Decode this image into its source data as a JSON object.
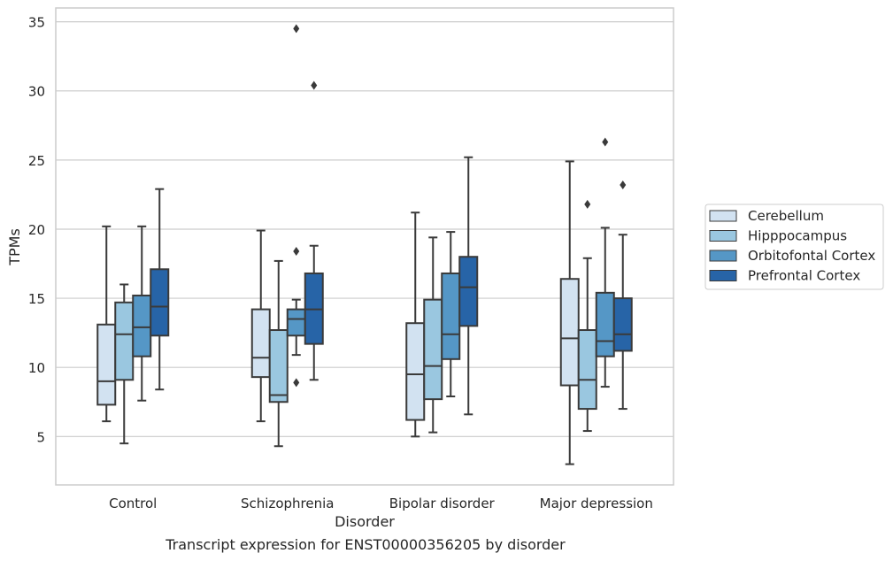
{
  "chart_data": {
    "type": "boxplot",
    "title": "",
    "caption": "Transcript expression for ENST00000356205 by disorder",
    "xlabel": "Disorder",
    "ylabel": "TPMs",
    "ylim": [
      1.5,
      36.0
    ],
    "yticks": [
      5,
      10,
      15,
      20,
      25,
      30,
      35
    ],
    "grid": "horizontal",
    "legend_position": "right",
    "categories": [
      "Control",
      "Schizophrenia",
      "Bipolar disorder",
      "Major depression"
    ],
    "series": [
      {
        "name": "Cerebellum",
        "color": "#d2e2f1",
        "boxes": [
          {
            "whislo": 6.1,
            "q1": 7.3,
            "med": 9.0,
            "q3": 13.1,
            "whishi": 20.2,
            "fliers": []
          },
          {
            "whislo": 6.1,
            "q1": 9.3,
            "med": 10.7,
            "q3": 14.2,
            "whishi": 19.9,
            "fliers": []
          },
          {
            "whislo": 5.0,
            "q1": 6.2,
            "med": 9.5,
            "q3": 13.2,
            "whishi": 21.2,
            "fliers": []
          },
          {
            "whislo": 3.0,
            "q1": 8.7,
            "med": 12.1,
            "q3": 16.4,
            "whishi": 24.9,
            "fliers": []
          }
        ]
      },
      {
        "name": "Hipppocampus",
        "color": "#9ac7e0",
        "boxes": [
          {
            "whislo": 4.5,
            "q1": 9.1,
            "med": 12.4,
            "q3": 14.7,
            "whishi": 16.0,
            "fliers": []
          },
          {
            "whislo": 4.3,
            "q1": 7.5,
            "med": 8.0,
            "q3": 12.7,
            "whishi": 17.7,
            "fliers": []
          },
          {
            "whislo": 5.3,
            "q1": 7.7,
            "med": 10.1,
            "q3": 14.9,
            "whishi": 19.4,
            "fliers": []
          },
          {
            "whislo": 5.4,
            "q1": 7.0,
            "med": 9.1,
            "q3": 12.7,
            "whishi": 17.9,
            "fliers": [
              21.8
            ]
          }
        ]
      },
      {
        "name": "Orbitofontal Cortex",
        "color": "#5597c6",
        "boxes": [
          {
            "whislo": 7.6,
            "q1": 10.8,
            "med": 12.9,
            "q3": 15.2,
            "whishi": 20.2,
            "fliers": []
          },
          {
            "whislo": 10.9,
            "q1": 12.3,
            "med": 13.5,
            "q3": 14.2,
            "whishi": 14.9,
            "fliers": [
              18.4,
              8.9,
              34.5
            ]
          },
          {
            "whislo": 7.9,
            "q1": 10.6,
            "med": 12.4,
            "q3": 16.8,
            "whishi": 19.8,
            "fliers": []
          },
          {
            "whislo": 8.6,
            "q1": 10.8,
            "med": 11.9,
            "q3": 15.4,
            "whishi": 20.1,
            "fliers": [
              26.3
            ]
          }
        ]
      },
      {
        "name": "Prefrontal Cortex",
        "color": "#2764a7",
        "boxes": [
          {
            "whislo": 8.4,
            "q1": 12.3,
            "med": 14.4,
            "q3": 17.1,
            "whishi": 22.9,
            "fliers": []
          },
          {
            "whislo": 9.1,
            "q1": 11.7,
            "med": 14.2,
            "q3": 16.8,
            "whishi": 18.8,
            "fliers": [
              30.4
            ]
          },
          {
            "whislo": 6.6,
            "q1": 13.0,
            "med": 15.8,
            "q3": 18.0,
            "whishi": 25.2,
            "fliers": []
          },
          {
            "whislo": 7.0,
            "q1": 11.2,
            "med": 12.4,
            "q3": 15.0,
            "whishi": 19.6,
            "fliers": [
              23.2
            ]
          }
        ]
      }
    ]
  }
}
